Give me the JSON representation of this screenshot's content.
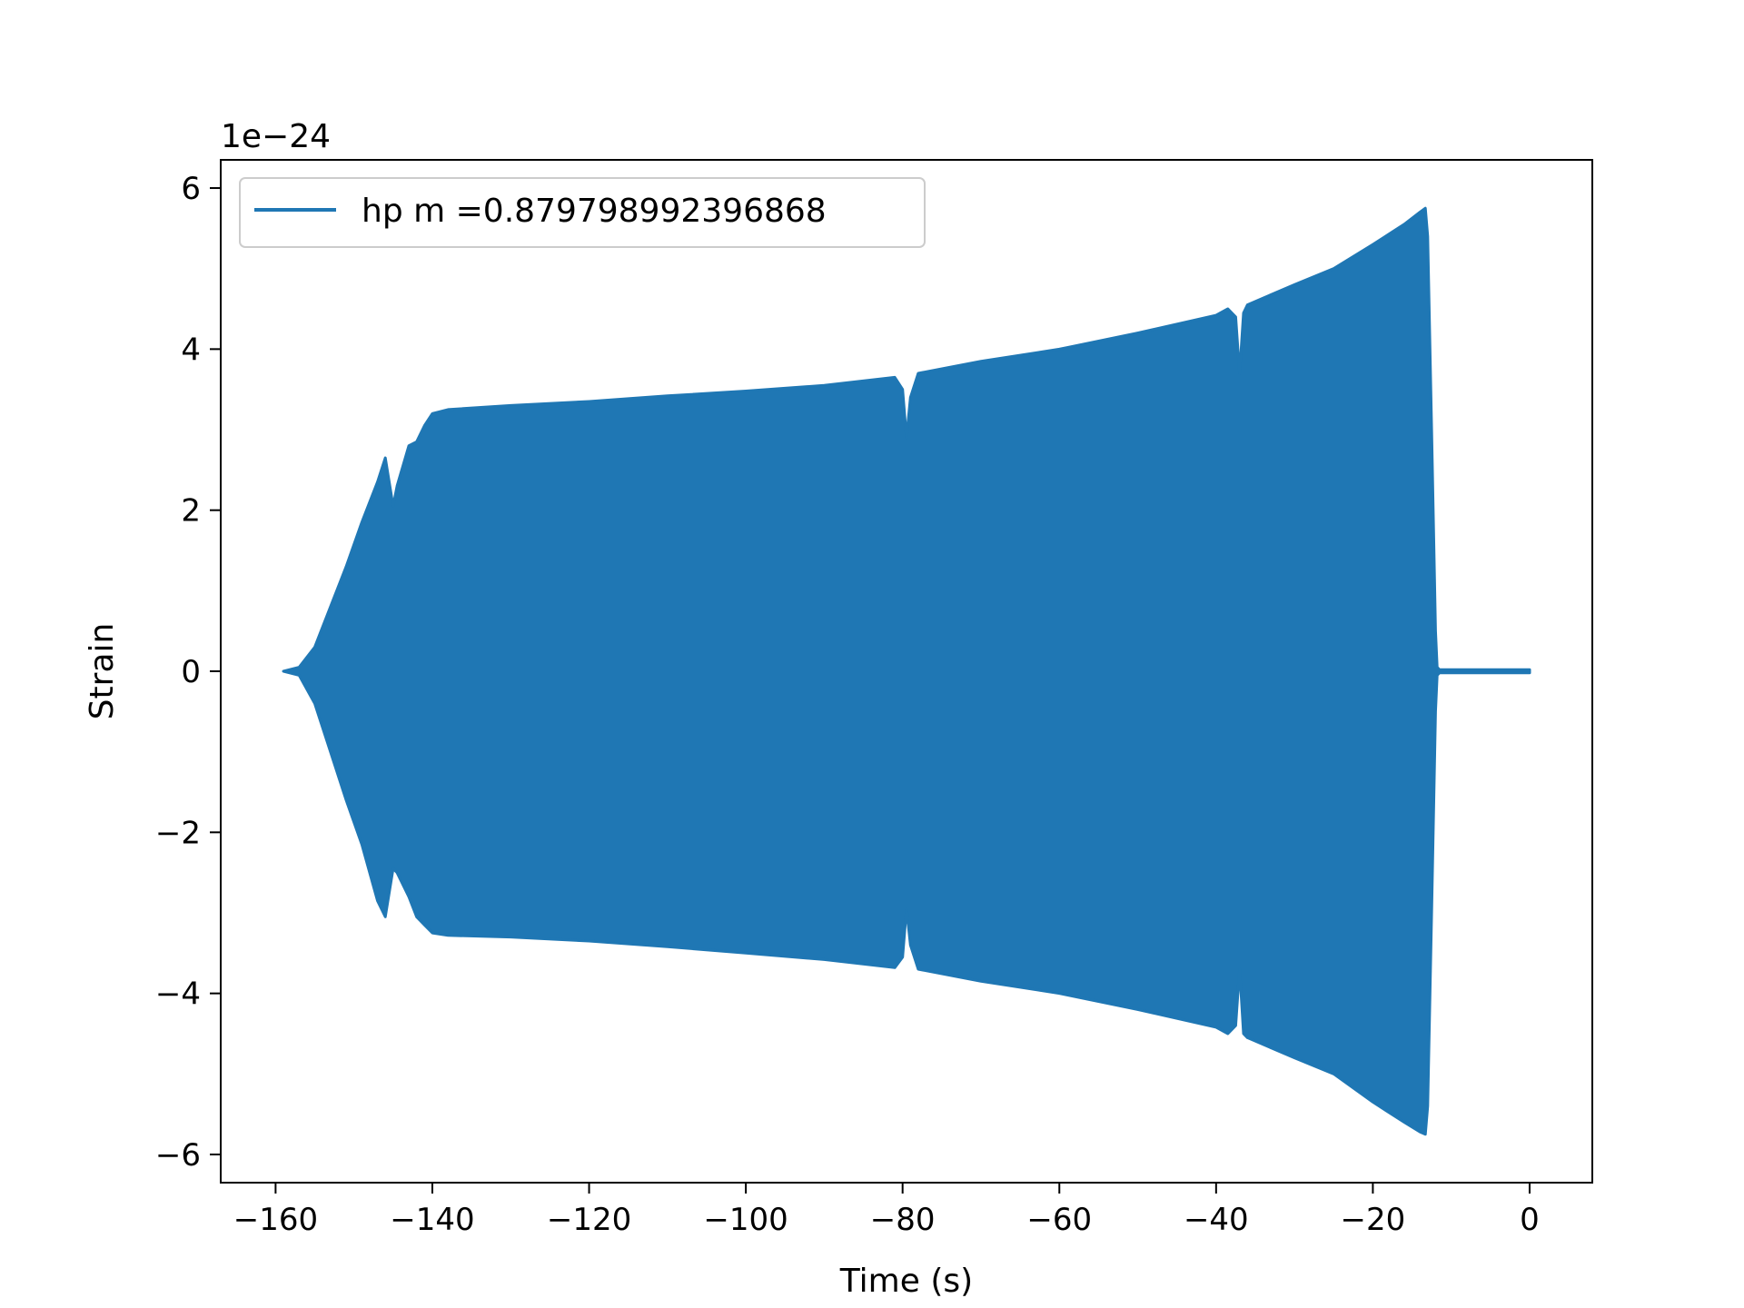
{
  "chart_data": {
    "type": "line",
    "title": "",
    "xlabel": "Time (s)",
    "ylabel": "Strain",
    "y_offset_label": "1e−24",
    "xlim": [
      -167,
      8
    ],
    "ylim": [
      -6.35,
      6.35
    ],
    "x_ticks": [
      -160,
      -140,
      -120,
      -100,
      -80,
      -60,
      -40,
      -20,
      0
    ],
    "x_tick_labels": [
      "−160",
      "−140",
      "−120",
      "−100",
      "−80",
      "−60",
      "−40",
      "−20",
      "0"
    ],
    "y_ticks": [
      6,
      4,
      2,
      0,
      -2,
      -4,
      -6
    ],
    "y_tick_labels": [
      "6",
      "4",
      "2",
      "0",
      "−2",
      "−4",
      "−6"
    ],
    "grid": false,
    "legend_position": "upper-left",
    "series": [
      {
        "name": "hp m =0.879798992396868",
        "color": "#1f77b4",
        "envelope_x": [
          -159,
          -157,
          -155,
          -153,
          -151,
          -149,
          -147,
          -146,
          -145,
          -144.5,
          -143,
          -142,
          -141,
          -140,
          -138,
          -130,
          -120,
          -110,
          -100,
          -90,
          -81,
          -80,
          -79.5,
          -79,
          -78,
          -70,
          -60,
          -50,
          -40,
          -38.5,
          -37.5,
          -37,
          -36.5,
          -36,
          -30,
          -25,
          -20,
          -16,
          -14,
          -13.3,
          -13,
          -12.5,
          -12,
          -11.8,
          -11.5,
          0
        ],
        "envelope_upper": [
          0.0,
          0.05,
          0.3,
          0.8,
          1.3,
          1.85,
          2.35,
          2.65,
          2.05,
          2.3,
          2.8,
          2.85,
          3.05,
          3.2,
          3.25,
          3.3,
          3.35,
          3.42,
          3.48,
          3.55,
          3.65,
          3.5,
          2.9,
          3.4,
          3.7,
          3.85,
          4.0,
          4.2,
          4.42,
          4.5,
          4.4,
          3.7,
          4.45,
          4.55,
          4.8,
          5.0,
          5.3,
          5.55,
          5.7,
          5.75,
          5.4,
          3.0,
          0.5,
          0.05,
          0.02,
          0.02
        ],
        "envelope_lower": [
          0.0,
          -0.05,
          -0.4,
          -1.0,
          -1.6,
          -2.15,
          -2.85,
          -3.05,
          -2.45,
          -2.5,
          -2.8,
          -3.05,
          -3.15,
          -3.25,
          -3.28,
          -3.3,
          -3.35,
          -3.42,
          -3.5,
          -3.58,
          -3.68,
          -3.55,
          -2.95,
          -3.4,
          -3.7,
          -3.85,
          -4.0,
          -4.2,
          -4.42,
          -4.5,
          -4.4,
          -3.7,
          -4.5,
          -4.55,
          -4.8,
          -5.0,
          -5.35,
          -5.6,
          -5.72,
          -5.75,
          -5.4,
          -3.0,
          -0.5,
          -0.05,
          -0.02,
          -0.02
        ]
      }
    ]
  }
}
